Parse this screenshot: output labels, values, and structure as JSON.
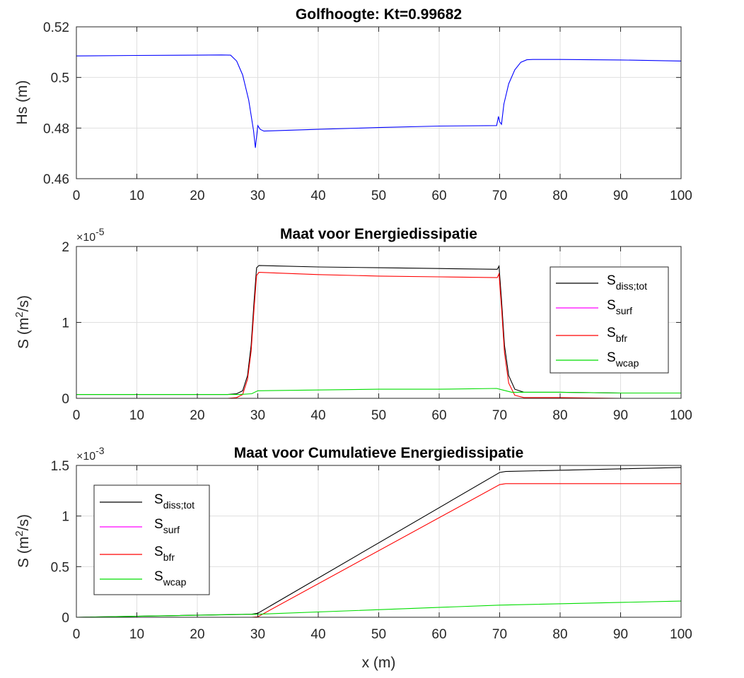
{
  "chart_data": [
    {
      "type": "line",
      "title": "Golfhoogte: Kt=0.99682",
      "xlabel": "",
      "ylabel": "Hs (m)",
      "xlim": [
        0,
        100
      ],
      "ylim": [
        0.46,
        0.52
      ],
      "xticks": [
        "0",
        "10",
        "20",
        "30",
        "40",
        "50",
        "60",
        "70",
        "80",
        "90",
        "100"
      ],
      "yticks": [
        "0.46",
        "0.48",
        "0.5",
        "0.52"
      ],
      "y_exponent": "",
      "grid": true,
      "legend": null,
      "series": [
        {
          "color": "#0000ff",
          "x": [
            0,
            10,
            20,
            24,
            25.5,
            26.5,
            27.5,
            28.5,
            29.3,
            29.6,
            30.0,
            30.4,
            31.0,
            32.0,
            40,
            50,
            60,
            69.5,
            69.8,
            70.0,
            70.3,
            70.7,
            71.5,
            72.5,
            73.5,
            74.5,
            75.5,
            80,
            90,
            100
          ],
          "y": [
            0.5085,
            0.5087,
            0.5088,
            0.5089,
            0.5088,
            0.5065,
            0.501,
            0.491,
            0.479,
            0.4722,
            0.481,
            0.4795,
            0.4788,
            0.4789,
            0.4795,
            0.4802,
            0.4808,
            0.481,
            0.4846,
            0.4825,
            0.4815,
            0.4895,
            0.4975,
            0.503,
            0.506,
            0.507,
            0.5071,
            0.5071,
            0.5069,
            0.5065
          ]
        }
      ]
    },
    {
      "type": "line",
      "title": "Maat voor Energiedissipatie",
      "xlabel": "",
      "ylabel": "S (m²/s)",
      "xlim": [
        0,
        100
      ],
      "ylim": [
        0,
        2
      ],
      "xticks": [
        "0",
        "10",
        "20",
        "30",
        "40",
        "50",
        "60",
        "70",
        "80",
        "90",
        "100"
      ],
      "yticks": [
        "0",
        "1",
        "2"
      ],
      "y_exponent": "×10⁻⁵",
      "grid": true,
      "legend": "right",
      "series": [
        {
          "name": "S_diss;tot",
          "color": "#000000",
          "x": [
            0,
            20,
            25,
            26.5,
            27.5,
            28.3,
            28.9,
            29.4,
            29.8,
            30.2,
            40,
            50,
            60,
            69.6,
            69.9,
            70.3,
            70.8,
            71.5,
            72.5,
            74,
            80,
            90,
            100
          ],
          "y": [
            0.05,
            0.05,
            0.05,
            0.06,
            0.1,
            0.3,
            0.7,
            1.3,
            1.72,
            1.75,
            1.73,
            1.72,
            1.71,
            1.7,
            1.74,
            1.3,
            0.7,
            0.3,
            0.12,
            0.08,
            0.08,
            0.07,
            0.07
          ]
        },
        {
          "name": "S_surf",
          "color": "#ff00ff",
          "x": [
            0,
            100
          ],
          "y": [
            0.0,
            0.0
          ]
        },
        {
          "name": "S_bfr",
          "color": "#ff0000",
          "x": [
            0,
            20,
            25,
            26.5,
            27.5,
            28.3,
            28.9,
            29.4,
            29.8,
            30.2,
            40,
            50,
            60,
            69.6,
            69.9,
            70.3,
            70.8,
            71.5,
            72.5,
            74,
            80,
            90,
            100
          ],
          "y": [
            0.0,
            0.0,
            0.0,
            0.01,
            0.05,
            0.25,
            0.62,
            1.2,
            1.62,
            1.66,
            1.63,
            1.61,
            1.6,
            1.59,
            1.64,
            1.2,
            0.6,
            0.2,
            0.04,
            0.01,
            0.01,
            0.0,
            0.0
          ]
        },
        {
          "name": "S_wcap",
          "color": "#00dd00",
          "x": [
            0,
            20,
            27,
            29.0,
            30.0,
            40,
            50,
            60,
            69.5,
            70.5,
            72,
            80,
            90,
            100
          ],
          "y": [
            0.05,
            0.05,
            0.05,
            0.06,
            0.1,
            0.11,
            0.12,
            0.12,
            0.13,
            0.11,
            0.08,
            0.08,
            0.07,
            0.07
          ]
        }
      ]
    },
    {
      "type": "line",
      "title": "Maat voor  Cumulatieve Energiedissipatie",
      "xlabel": "x (m)",
      "ylabel": "S (m²/s)",
      "xlim": [
        0,
        100
      ],
      "ylim": [
        0,
        1.5
      ],
      "xticks": [
        "0",
        "10",
        "20",
        "30",
        "40",
        "50",
        "60",
        "70",
        "80",
        "90",
        "100"
      ],
      "yticks": [
        "0",
        "0.5",
        "1",
        "1.5"
      ],
      "y_exponent": "×10⁻³",
      "grid": true,
      "legend": "left",
      "series": [
        {
          "name": "S_diss;tot",
          "color": "#000000",
          "x": [
            0,
            29,
            30,
            70,
            71,
            100
          ],
          "y": [
            0.0,
            0.03,
            0.04,
            1.43,
            1.44,
            1.48
          ]
        },
        {
          "name": "S_surf",
          "color": "#ff00ff",
          "x": [
            0,
            100
          ],
          "y": [
            0.0,
            0.0
          ]
        },
        {
          "name": "S_bfr",
          "color": "#ff0000",
          "x": [
            0,
            29,
            30,
            70,
            71,
            100
          ],
          "y": [
            0.0,
            0.0,
            0.005,
            1.31,
            1.32,
            1.32
          ]
        },
        {
          "name": "S_wcap",
          "color": "#00dd00",
          "x": [
            0,
            30,
            70,
            100
          ],
          "y": [
            0.0,
            0.03,
            0.12,
            0.16
          ]
        }
      ]
    }
  ],
  "legend_labels": [
    {
      "main": "S",
      "sub": "diss;tot"
    },
    {
      "main": "S",
      "sub": "surf"
    },
    {
      "main": "S",
      "sub": "bfr"
    },
    {
      "main": "S",
      "sub": "wcap"
    }
  ]
}
